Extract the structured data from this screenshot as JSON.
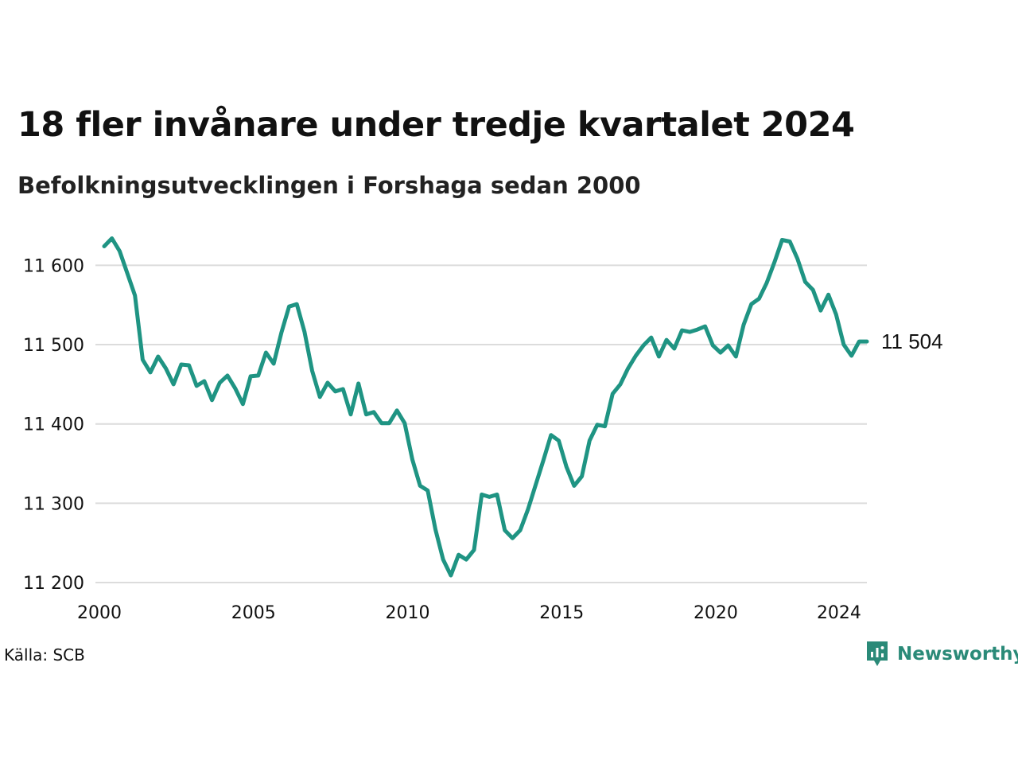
{
  "chart_data": {
    "type": "line",
    "title": "18 fler invånare under tredje kvartalet 2024",
    "subtitle": "Befolkningsutvecklingen i Forshaga sedan 2000",
    "xlim": [
      2000,
      2024.75
    ],
    "ylim": [
      11200,
      11640
    ],
    "yticks": [
      11200,
      11300,
      11400,
      11500,
      11600
    ],
    "ytick_labels": [
      "11 200",
      "11 300",
      "11 400",
      "11 500",
      "11 600"
    ],
    "xticks": [
      2000,
      2005,
      2010,
      2015,
      2020,
      2024
    ],
    "xtick_labels": [
      "2000",
      "2005",
      "2010",
      "2015",
      "2020",
      "2024"
    ],
    "grid": "horizontal",
    "line_color": "#1f9483",
    "end_label": "11 504",
    "series": [
      {
        "x": [
          2000.0,
          2000.25,
          2000.5,
          2000.75,
          2001.0,
          2001.25,
          2001.5,
          2001.75,
          2002.0,
          2002.25,
          2002.5,
          2002.75,
          2003.0,
          2003.25,
          2003.5,
          2003.75,
          2004.0,
          2004.25,
          2004.5,
          2004.75,
          2005.0,
          2005.25,
          2005.5,
          2005.75,
          2006.0,
          2006.25,
          2006.5,
          2006.75,
          2007.0,
          2007.25,
          2007.5,
          2007.75,
          2008.0,
          2008.25,
          2008.5,
          2008.75,
          2009.0,
          2009.25,
          2009.5,
          2009.75,
          2010.0,
          2010.25,
          2010.5,
          2010.75,
          2011.0,
          2011.25,
          2011.5,
          2011.75,
          2012.0,
          2012.25,
          2012.5,
          2012.75,
          2013.0,
          2013.25,
          2013.5,
          2013.75,
          2014.0,
          2014.25,
          2014.5,
          2014.75,
          2015.0,
          2015.25,
          2015.5,
          2015.75,
          2016.0,
          2016.25,
          2016.5,
          2016.75,
          2017.0,
          2017.25,
          2017.5,
          2017.75,
          2018.0,
          2018.25,
          2018.5,
          2018.75,
          2019.0,
          2019.25,
          2019.5,
          2019.75,
          2020.0,
          2020.25,
          2020.5,
          2020.75,
          2021.0,
          2021.25,
          2021.5,
          2021.75,
          2022.0,
          2022.25,
          2022.5,
          2022.75,
          2023.0,
          2023.25,
          2023.5,
          2023.75,
          2024.0,
          2024.25,
          2024.5,
          2024.75
        ],
        "values": [
          11624,
          11634,
          11618,
          11590,
          11562,
          11481,
          11465,
          11485,
          11470,
          11450,
          11475,
          11474,
          11448,
          11454,
          11430,
          11452,
          11461,
          11445,
          11425,
          11460,
          11461,
          11490,
          11476,
          11515,
          11548,
          11551,
          11516,
          11467,
          11434,
          11452,
          11441,
          11444,
          11412,
          11451,
          11412,
          11415,
          11401,
          11401,
          11417,
          11401,
          11355,
          11322,
          11316,
          11267,
          11229,
          11209,
          11235,
          11229,
          11241,
          11311,
          11308,
          11311,
          11266,
          11256,
          11266,
          11292,
          11323,
          11354,
          11386,
          11379,
          11346,
          11322,
          11334,
          11379,
          11399,
          11397,
          11438,
          11450,
          11470,
          11486,
          11499,
          11509,
          11485,
          11506,
          11495,
          11518,
          11516,
          11519,
          11523,
          11499,
          11490,
          11499,
          11485,
          11525,
          11551,
          11558,
          11578,
          11604,
          11632,
          11630,
          11608,
          11579,
          11569,
          11543,
          11563,
          11538,
          11500,
          11486,
          11504,
          11504
        ]
      }
    ]
  },
  "source": "Källa: SCB",
  "brand": {
    "name": "Newsworthy",
    "color": "#2a8a78"
  }
}
